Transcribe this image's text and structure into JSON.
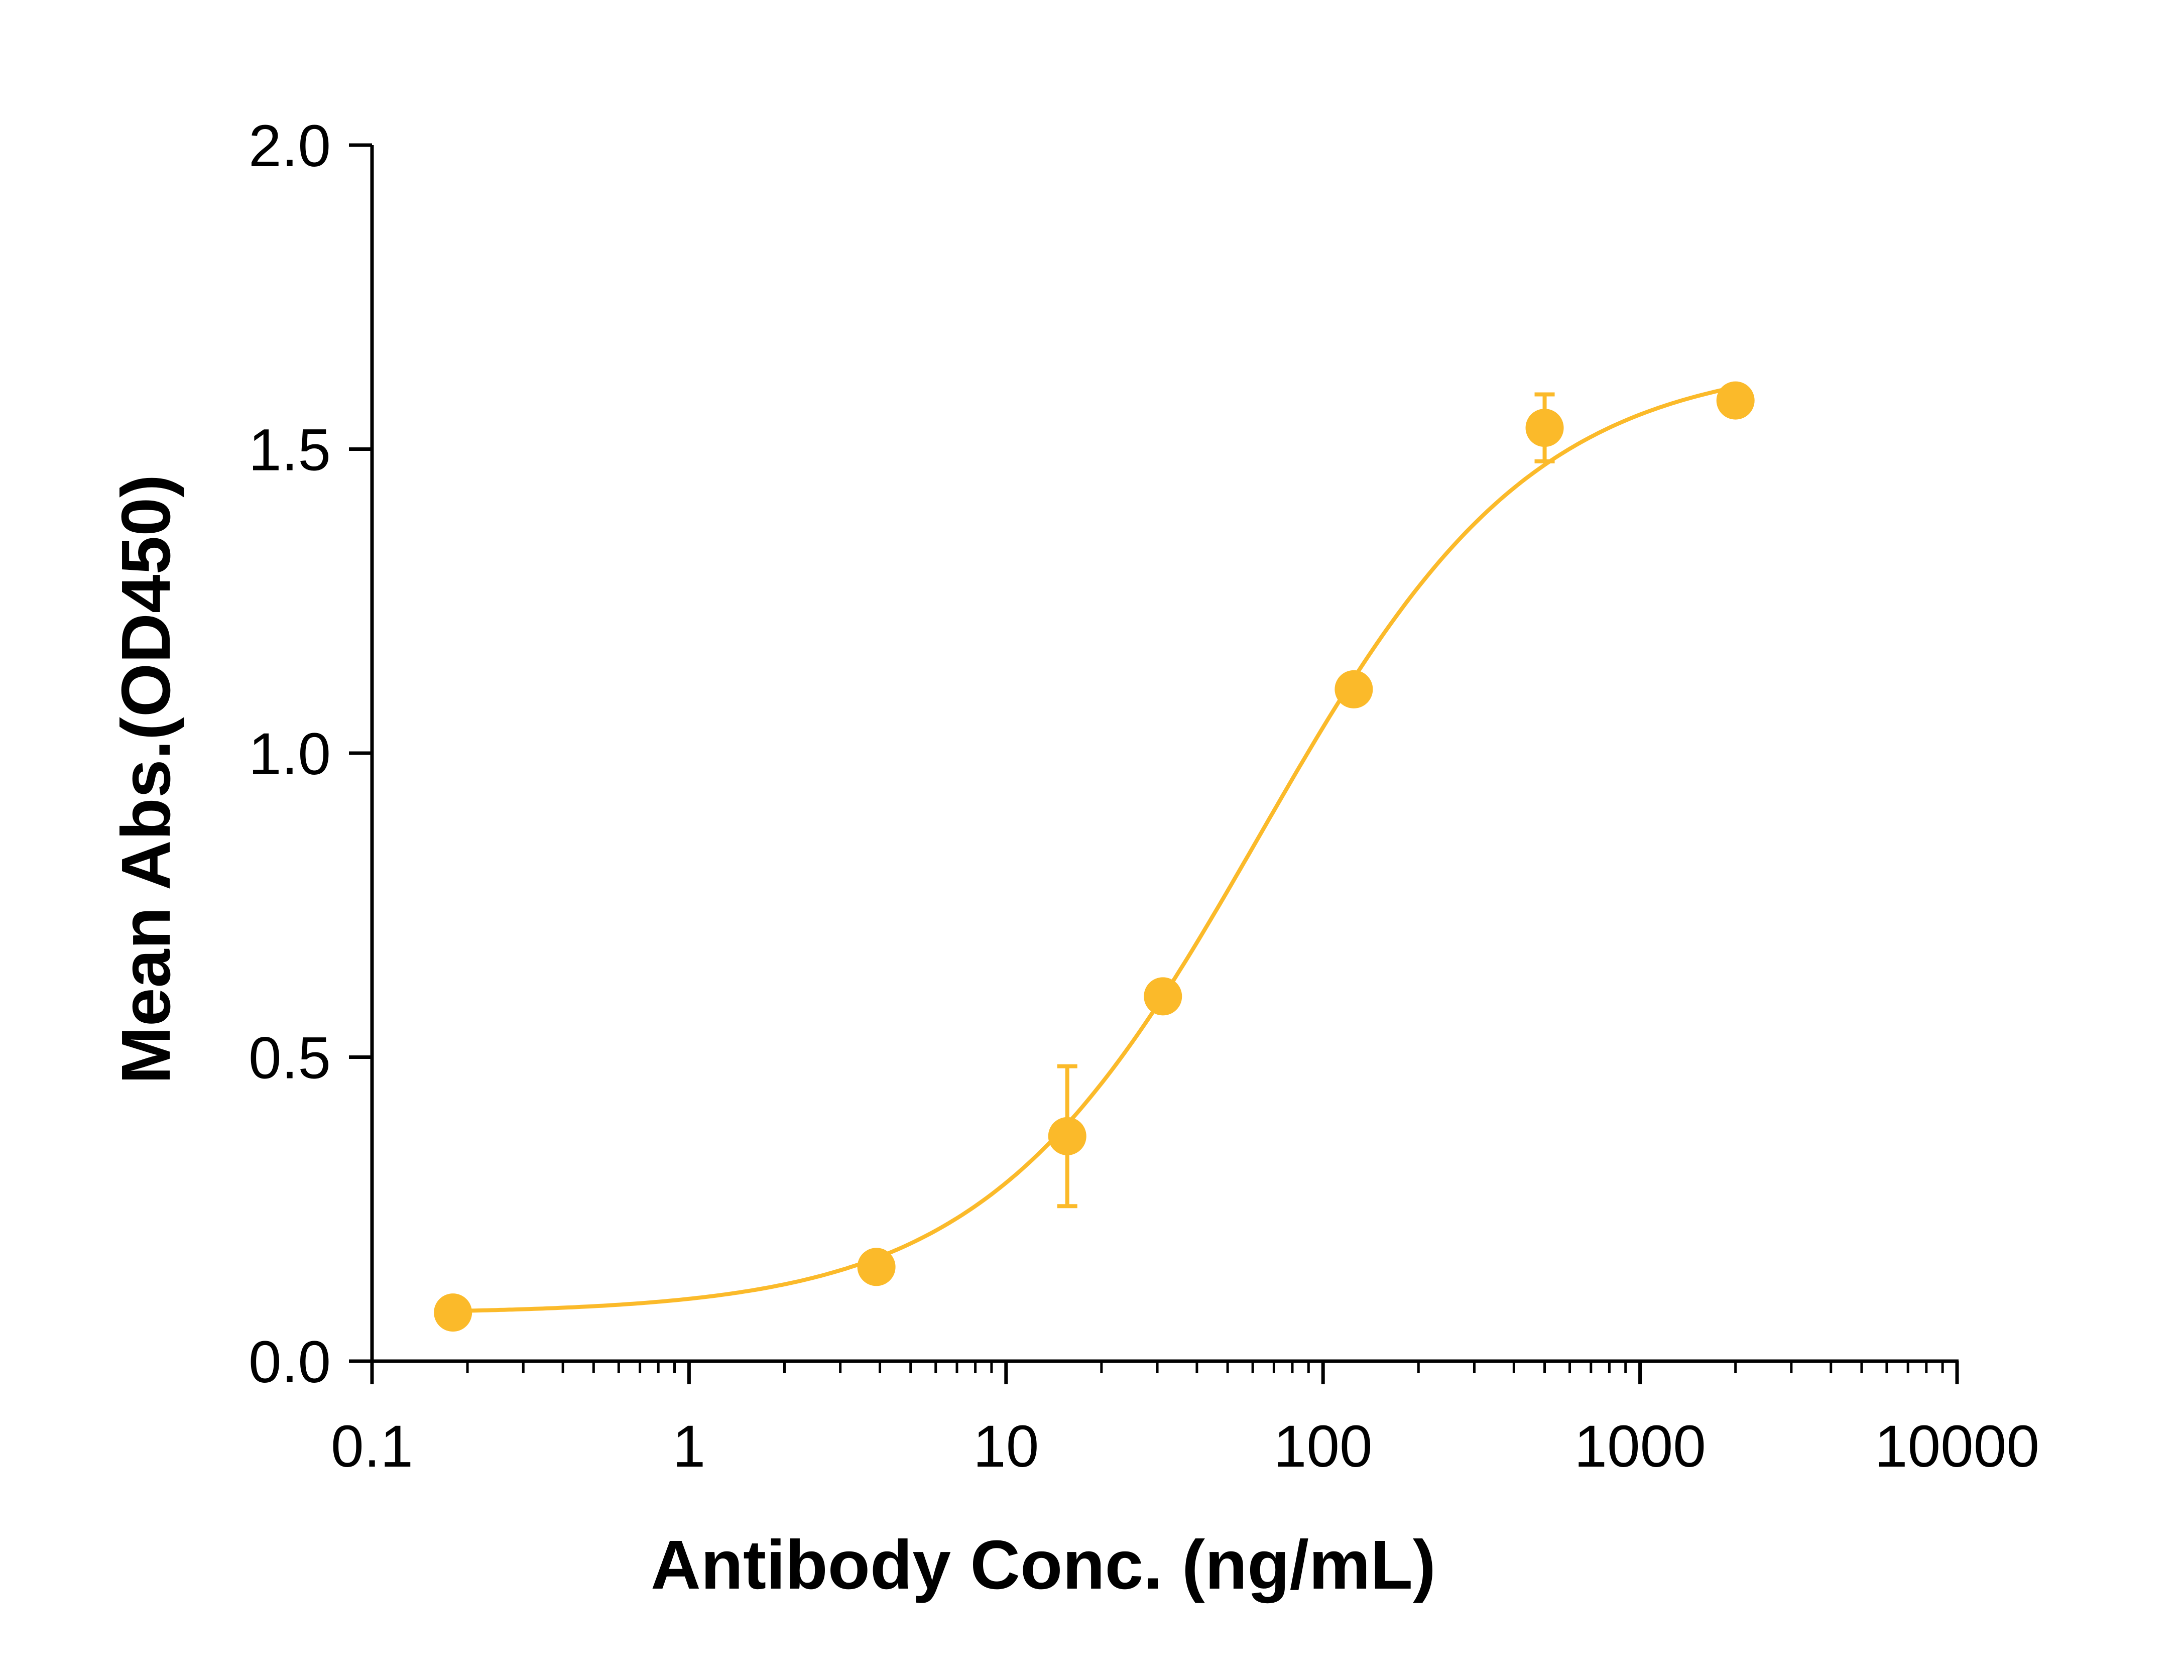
{
  "chart_data": {
    "type": "scatter",
    "title": "",
    "xlabel": "Antibody Conc. (ng/mL)",
    "ylabel": "Mean Abs.(OD450)",
    "xscale": "log",
    "xlim": [
      0.1,
      10000
    ],
    "ylim": [
      0,
      2.0
    ],
    "grid": false,
    "legend": "none",
    "x_ticks": [
      "0.1",
      "1",
      "10",
      "100",
      "1000",
      "10000"
    ],
    "y_ticks": [
      "0.0",
      "0.5",
      "1.0",
      "1.5",
      "2.0"
    ],
    "color": "#FBBA2A",
    "series": [
      {
        "x": [
          0.18,
          3.9,
          15.6,
          31.25,
          125,
          500,
          2000
        ],
        "y": [
          0.08,
          0.155,
          0.37,
          0.6,
          1.105,
          1.535,
          1.58
        ],
        "error": [
          0.0,
          0.0,
          0.115,
          0.0,
          0.0,
          0.055,
          0.0
        ],
        "fit": {
          "model": "4PL",
          "bottom": 0.078,
          "top": 1.65,
          "ec50": 63,
          "hill": 1.0
        }
      }
    ]
  }
}
